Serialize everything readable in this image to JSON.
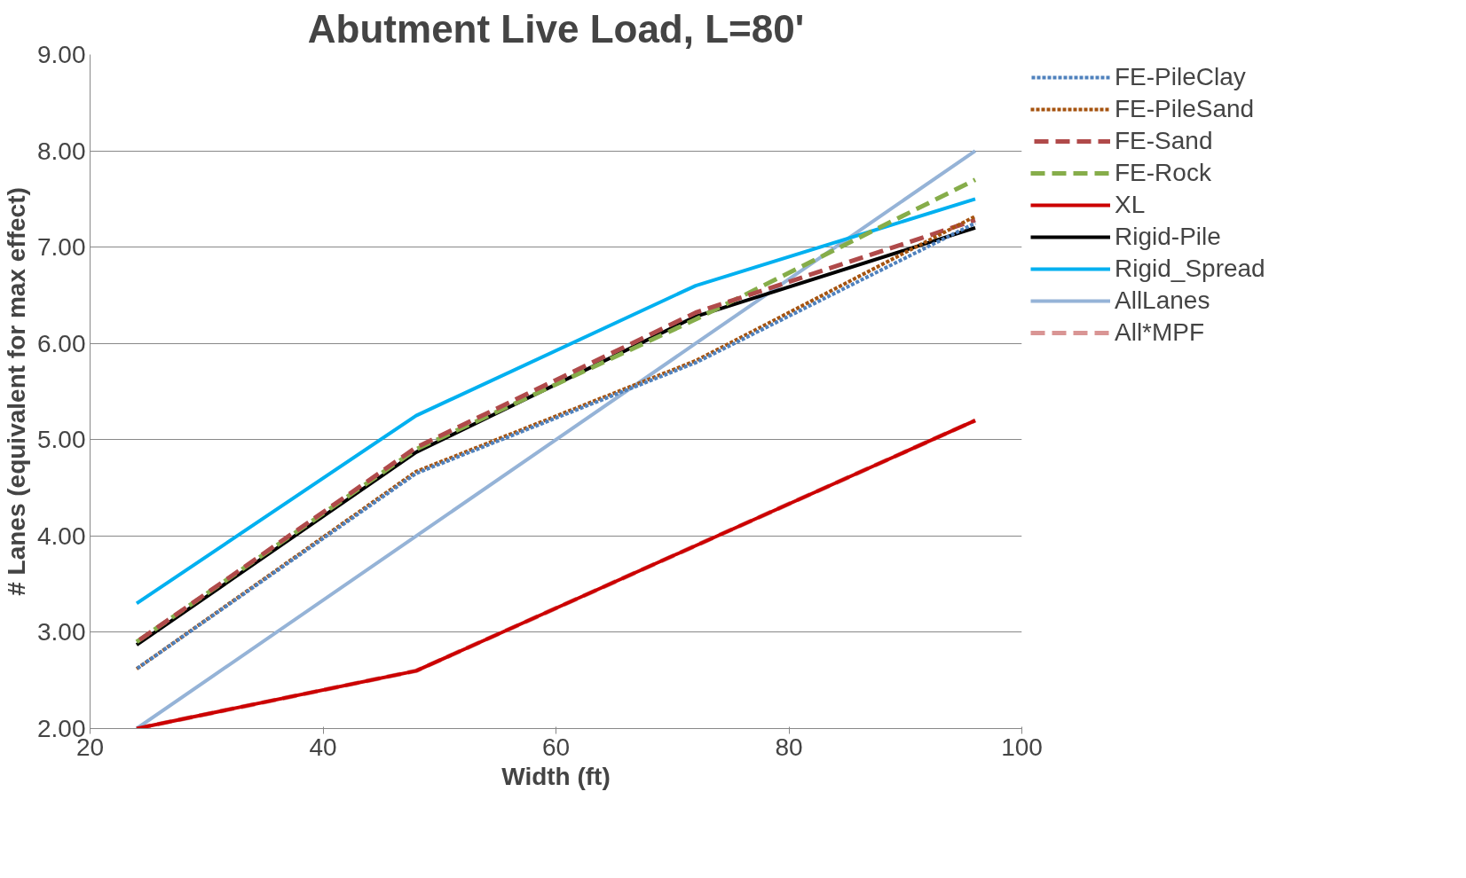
{
  "chart_data": {
    "type": "line",
    "title": "Abutment Live Load, L=80'",
    "xlabel": "Width (ft)",
    "ylabel": "# Lanes (equivalent for max effect)",
    "x": [
      24,
      48,
      72,
      96
    ],
    "xlim": [
      20,
      100
    ],
    "xticks": [
      20,
      40,
      60,
      80,
      100
    ],
    "ylim": [
      2,
      9
    ],
    "yticks": [
      {
        "value": 2,
        "label": "2.00"
      },
      {
        "value": 3,
        "label": "3.00"
      },
      {
        "value": 4,
        "label": "4.00"
      },
      {
        "value": 5,
        "label": "5.00"
      },
      {
        "value": 6,
        "label": "6.00"
      },
      {
        "value": 7,
        "label": "7.00"
      },
      {
        "value": 8,
        "label": "8.00"
      },
      {
        "value": 9,
        "label": "9.00"
      }
    ],
    "grid": "y",
    "legend": "right",
    "marker": "none",
    "series": [
      {
        "name": "FE-PileClay",
        "color": "#4f81bd",
        "line_style": "dotted",
        "values": [
          2.62,
          4.65,
          5.8,
          7.25
        ]
      },
      {
        "name": "FE-PileSand",
        "color": "#a5530f",
        "line_style": "dotted",
        "values": [
          2.62,
          4.67,
          5.82,
          7.32
        ]
      },
      {
        "name": "FE-Sand",
        "color": "#b04a4a",
        "line_style": "dashed",
        "values": [
          2.9,
          4.92,
          6.32,
          7.28
        ]
      },
      {
        "name": "FE-Rock",
        "color": "#86ad4a",
        "line_style": "dashed",
        "values": [
          2.9,
          4.9,
          6.25,
          7.7
        ]
      },
      {
        "name": "XL",
        "color": "#cc0000",
        "line_style": "solid",
        "values": [
          2.0,
          2.6,
          3.9,
          5.2
        ]
      },
      {
        "name": "Rigid-Pile",
        "color": "#000000",
        "line_style": "solid",
        "values": [
          2.87,
          4.87,
          6.28,
          7.2
        ]
      },
      {
        "name": "Rigid_Spread",
        "color": "#00b0f0",
        "line_style": "solid",
        "values": [
          3.3,
          5.25,
          6.6,
          7.5
        ]
      },
      {
        "name": "AllLanes",
        "color": "#95b3d7",
        "line_style": "solid",
        "values": [
          2,
          4,
          6,
          8
        ]
      },
      {
        "name": "All*MPF",
        "color": "#d99594",
        "line_style": "dashed",
        "values": [
          2.0,
          2.6,
          3.9,
          5.2
        ]
      }
    ]
  }
}
